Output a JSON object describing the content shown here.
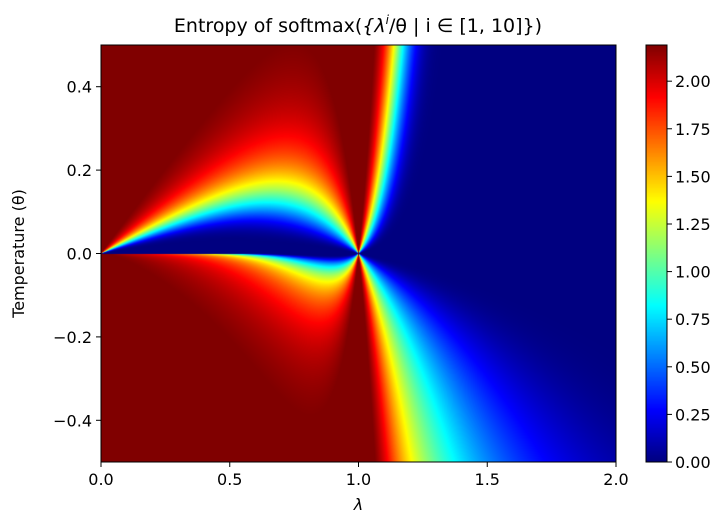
{
  "chart_data": {
    "type": "heatmap",
    "title_prefix": "Entropy of softmax(",
    "title_set": "{λ",
    "title_exp": "i",
    "title_rest": "/θ | i ∈ [1, 10]}",
    "title_suffix": ")",
    "function": "entropy of softmax over i = 1..10 of λ^i / θ",
    "index_range": [
      1,
      10
    ],
    "xlabel": "λ",
    "ylabel": "Temperature (θ)",
    "xlim": [
      0.0,
      2.0
    ],
    "ylim": [
      -0.5,
      0.5
    ],
    "x_ticks": [
      {
        "value": 0.0,
        "label": "0.0"
      },
      {
        "value": 0.5,
        "label": "0.5"
      },
      {
        "value": 1.0,
        "label": "1.0"
      },
      {
        "value": 1.5,
        "label": "1.5"
      },
      {
        "value": 2.0,
        "label": "2.0"
      }
    ],
    "y_ticks": [
      {
        "value": 0.4,
        "label": "0.4"
      },
      {
        "value": 0.2,
        "label": "0.2"
      },
      {
        "value": 0.0,
        "label": "0.0"
      },
      {
        "value": -0.2,
        "label": "−0.2"
      },
      {
        "value": -0.4,
        "label": "−0.4"
      }
    ],
    "colormap": "jet",
    "colorbar": {
      "vmin": 0.0,
      "vmax": 2.19,
      "ticks": [
        {
          "value": 0.0,
          "label": "0.00"
        },
        {
          "value": 0.25,
          "label": "0.25"
        },
        {
          "value": 0.5,
          "label": "0.50"
        },
        {
          "value": 0.75,
          "label": "0.75"
        },
        {
          "value": 1.0,
          "label": "1.00"
        },
        {
          "value": 1.25,
          "label": "1.25"
        },
        {
          "value": 1.5,
          "label": "1.50"
        },
        {
          "value": 1.75,
          "label": "1.75"
        },
        {
          "value": 2.0,
          "label": "2.00"
        }
      ]
    },
    "grid": false
  }
}
